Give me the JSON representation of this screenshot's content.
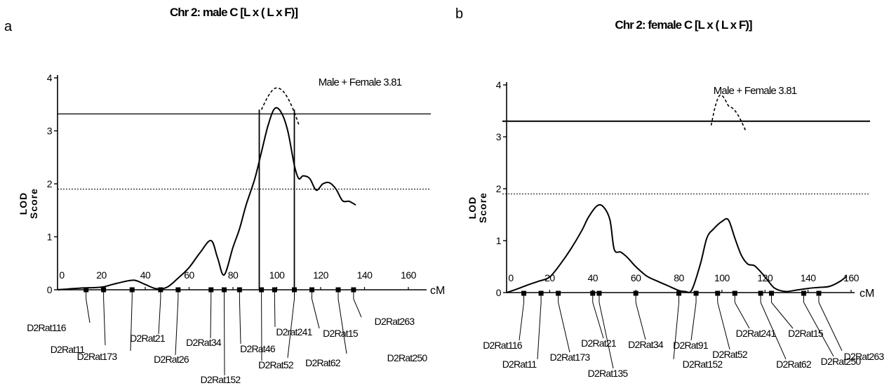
{
  "chart_data": [
    {
      "panel": "a",
      "type": "line",
      "title": "Chr 2: male C [L x ( L x F)]",
      "ylabel": [
        "LOD",
        "Score"
      ],
      "xlabel": "cM",
      "xlim": [
        0,
        160
      ],
      "ylim": [
        0,
        4
      ],
      "x_ticks": [
        0,
        20,
        40,
        60,
        80,
        100,
        120,
        140,
        160
      ],
      "y_ticks": [
        0,
        1,
        2,
        3,
        4
      ],
      "thresholds": [
        3.32,
        1.9
      ],
      "annotation": "Male + Female 3.81",
      "confidence_interval": [
        92,
        108
      ],
      "series": [
        {
          "style": "solid",
          "x": [
            0,
            10,
            20,
            25,
            30,
            35,
            40,
            45,
            50,
            55,
            60,
            65,
            70,
            73,
            76,
            80,
            83,
            86,
            90,
            93,
            96,
            99,
            102,
            105,
            108,
            110,
            112,
            115,
            118,
            121,
            124,
            127,
            130,
            133,
            136
          ],
          "y": [
            0,
            0.03,
            0.05,
            0.1,
            0.15,
            0.18,
            0.1,
            0.02,
            0.05,
            0.22,
            0.42,
            0.7,
            0.93,
            0.6,
            0.28,
            0.8,
            1.15,
            1.6,
            2.1,
            2.6,
            3.1,
            3.42,
            3.35,
            3.0,
            2.35,
            2.1,
            2.15,
            2.1,
            1.88,
            2.0,
            2.02,
            1.9,
            1.68,
            1.67,
            1.6
          ]
        },
        {
          "style": "dashed",
          "x": [
            93,
            96,
            99,
            102,
            105,
            108,
            110
          ],
          "y": [
            3.4,
            3.65,
            3.8,
            3.78,
            3.62,
            3.35,
            3.12
          ]
        }
      ],
      "markers": [
        {
          "name": "D2Rat116",
          "pos": 13
        },
        {
          "name": "D2Rat11",
          "pos": 21
        },
        {
          "name": "D2Rat173",
          "pos": 34
        },
        {
          "name": "D2Rat21",
          "pos": 47
        },
        {
          "name": "D2Rat26",
          "pos": 55
        },
        {
          "name": "D2Rat34",
          "pos": 70
        },
        {
          "name": "D2Rat152",
          "pos": 76
        },
        {
          "name": "D2Rat46",
          "pos": 83
        },
        {
          "name": "D2Rat52",
          "pos": 93
        },
        {
          "name": "D2rat241",
          "pos": 99
        },
        {
          "name": "D2Rat62",
          "pos": 108
        },
        {
          "name": "D2Rat15",
          "pos": 116
        },
        {
          "name": "D2Rat250",
          "pos": 128
        },
        {
          "name": "D2Rat263",
          "pos": 135
        }
      ]
    },
    {
      "panel": "b",
      "type": "line",
      "title": "Chr 2: female C [L x ( L x F)]",
      "ylabel": [
        "LOD",
        "Score"
      ],
      "xlabel": "cM",
      "xlim": [
        0,
        160
      ],
      "ylim": [
        0,
        4
      ],
      "x_ticks": [
        0,
        20,
        40,
        60,
        80,
        100,
        120,
        140,
        160
      ],
      "y_ticks": [
        0,
        1,
        2,
        3,
        4
      ],
      "thresholds": [
        3.3,
        1.9
      ],
      "annotation": "Male + Female 3.81",
      "series": [
        {
          "style": "solid",
          "x": [
            0,
            5,
            10,
            15,
            20,
            25,
            30,
            35,
            38,
            42,
            45,
            48,
            50,
            53,
            56,
            60,
            65,
            70,
            75,
            80,
            83,
            86,
            90,
            93,
            96,
            100,
            103,
            106,
            109,
            112,
            115,
            118,
            121,
            124,
            127,
            130,
            135,
            140,
            145,
            150,
            155,
            158
          ],
          "y": [
            0,
            0.07,
            0.15,
            0.22,
            0.3,
            0.55,
            0.85,
            1.2,
            1.45,
            1.67,
            1.65,
            1.4,
            0.83,
            0.78,
            0.68,
            0.5,
            0.32,
            0.22,
            0.13,
            0.04,
            0.02,
            0.05,
            0.55,
            1.05,
            1.22,
            1.37,
            1.4,
            1.05,
            0.72,
            0.55,
            0.52,
            0.4,
            0.25,
            0.1,
            0.04,
            0.02,
            0.05,
            0.08,
            0.1,
            0.12,
            0.22,
            0.32
          ]
        },
        {
          "style": "dashed",
          "x": [
            95,
            97,
            99,
            101,
            103,
            105,
            107,
            109,
            111
          ],
          "y": [
            3.22,
            3.6,
            3.8,
            3.75,
            3.6,
            3.55,
            3.45,
            3.3,
            3.12
          ]
        }
      ],
      "markers": [
        {
          "name": "D2Rat116",
          "pos": 8
        },
        {
          "name": "D2Rat11",
          "pos": 16
        },
        {
          "name": "D2Rat173",
          "pos": 24
        },
        {
          "name": "D2Rat21",
          "pos": 40
        },
        {
          "name": "D2Rat135",
          "pos": 43
        },
        {
          "name": "D2Rat34",
          "pos": 60
        },
        {
          "name": "D2Rat152",
          "pos": 80
        },
        {
          "name": "D2Rat91",
          "pos": 88
        },
        {
          "name": "D2Rat52",
          "pos": 98
        },
        {
          "name": "D2Rat241",
          "pos": 106
        },
        {
          "name": "D2Rat62",
          "pos": 118
        },
        {
          "name": "D2Rat15",
          "pos": 123
        },
        {
          "name": "D2Rat250",
          "pos": 138
        },
        {
          "name": "D2Rat263",
          "pos": 145
        }
      ]
    }
  ]
}
